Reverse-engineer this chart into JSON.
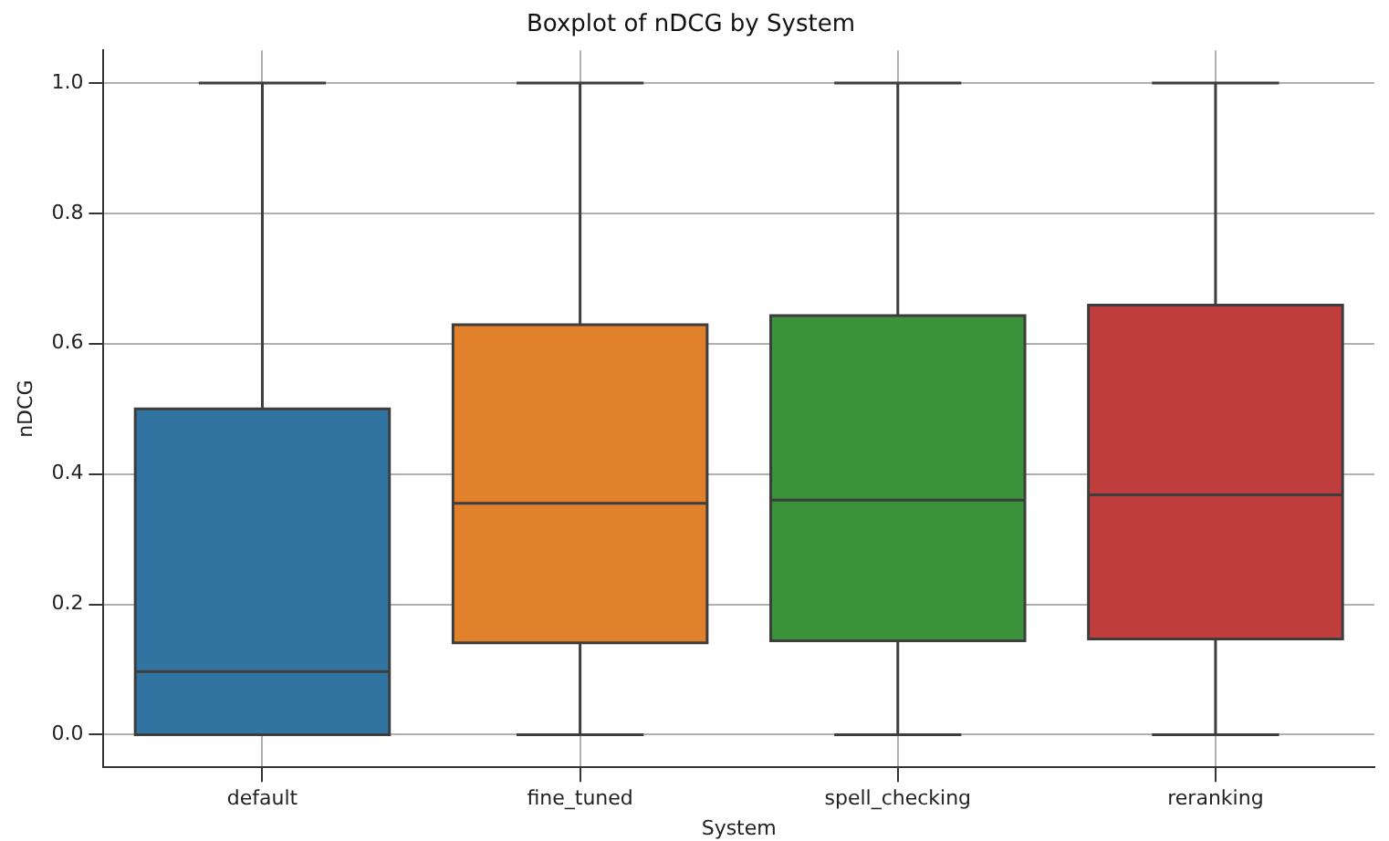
{
  "chart_data": {
    "type": "box",
    "title": "Boxplot of nDCG by System",
    "xlabel": "System",
    "ylabel": "nDCG",
    "categories": [
      "default",
      "fine_tuned",
      "spell_checking",
      "reranking"
    ],
    "colors": [
      "#3274a1",
      "#e1812c",
      "#3a923a",
      "#c03d3e"
    ],
    "boxes": [
      {
        "low": 0,
        "q1": 0,
        "median": 0.097,
        "q3": 0.5,
        "high": 1
      },
      {
        "low": 0,
        "q1": 0.141,
        "median": 0.355,
        "q3": 0.629,
        "high": 1
      },
      {
        "low": 0,
        "q1": 0.144,
        "median": 0.36,
        "q3": 0.643,
        "high": 1
      },
      {
        "low": 0,
        "q1": 0.147,
        "median": 0.368,
        "q3": 0.659,
        "high": 1
      }
    ],
    "ylim": [
      -0.05,
      1.05
    ],
    "yticks": [
      {
        "value": 0,
        "label": "0.0"
      },
      {
        "value": 0.2,
        "label": "0.2"
      },
      {
        "value": 0.4,
        "label": "0.4"
      },
      {
        "value": 0.6,
        "label": "0.6"
      },
      {
        "value": 0.8,
        "label": "0.8"
      },
      {
        "value": 1,
        "label": "1.0"
      }
    ],
    "grid": true
  }
}
